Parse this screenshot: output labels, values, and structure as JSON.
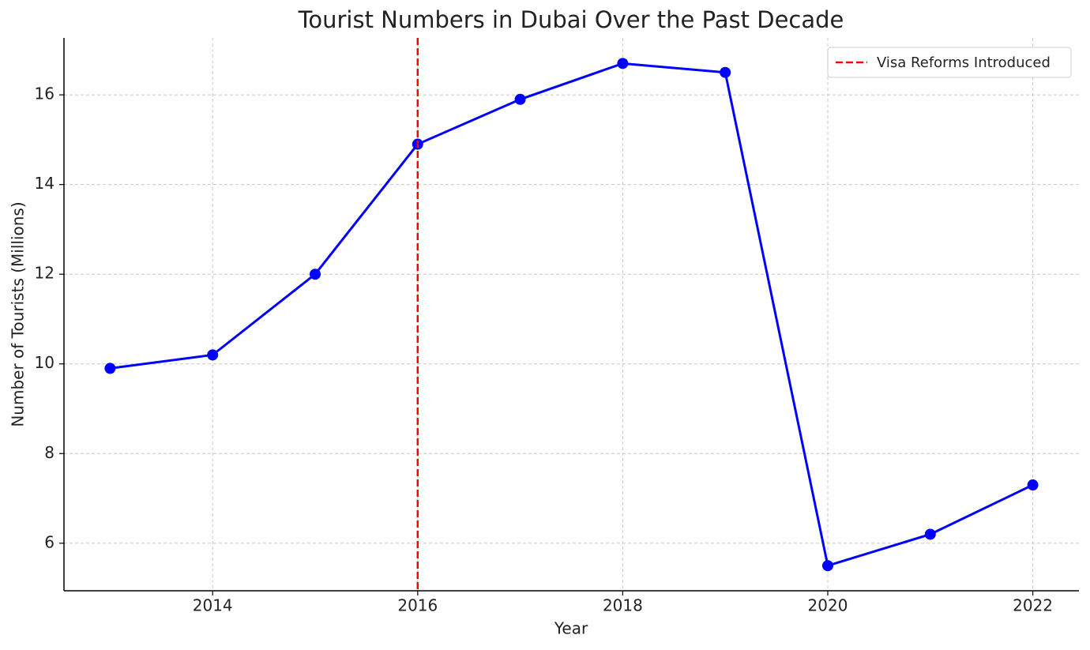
{
  "chart_data": {
    "type": "line",
    "title": "Tourist Numbers in Dubai Over the Past Decade",
    "x_label": "Year",
    "y_label": "Number of Tourists (Millions)",
    "x": [
      2013,
      2014,
      2015,
      2016,
      2017,
      2018,
      2019,
      2020,
      2021,
      2022
    ],
    "series": [
      {
        "color": "#0000ff",
        "values": [
          9.9,
          10.2,
          12.0,
          14.9,
          15.9,
          16.7,
          16.5,
          5.5,
          6.2,
          7.3
        ]
      }
    ],
    "xlim": [
      2012.55,
      2022.45
    ],
    "ylim": [
      4.94,
      17.27
    ],
    "xticks": [
      2014,
      2016,
      2018,
      2020,
      2022
    ],
    "yticks": [
      6,
      8,
      10,
      12,
      14,
      16
    ],
    "grid": true,
    "vline": {
      "x": 2016,
      "label": "Visa Reforms Introduced",
      "color": "#ff0000"
    },
    "legend_position": "upper right"
  }
}
